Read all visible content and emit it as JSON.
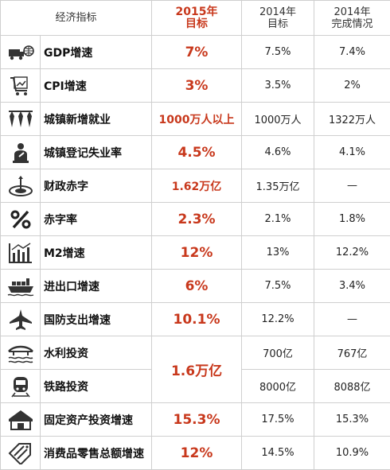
{
  "header": {
    "indicator": "经济指标",
    "target_2015": "2015年\n目标",
    "target_2014": "2014年\n目标",
    "actual_2014": "2014年\n完成情况"
  },
  "rows": [
    {
      "icon": "truck-globe-icon",
      "name": "GDP增速",
      "t2015": "7%",
      "t2014": "7.5%",
      "a2014": "7.4%"
    },
    {
      "icon": "shopping-cart-icon",
      "name": "CPI增速",
      "t2015": "3%",
      "t2014": "3.5%",
      "a2014": "2%"
    },
    {
      "icon": "workers-ties-icon",
      "name": "城镇新增就业",
      "t2015": "1000万人以上",
      "t2014": "1000万人",
      "a2014": "1322万人"
    },
    {
      "icon": "worried-person-icon",
      "name": "城镇登记失业率",
      "t2015": "4.5%",
      "t2014": "4.6%",
      "a2014": "4.1%"
    },
    {
      "icon": "target-arrow-icon",
      "name": "财政赤字",
      "t2015": "1.62万亿",
      "t2014": "1.35万亿",
      "a2014": "—"
    },
    {
      "icon": "percent-icon",
      "name": "赤字率",
      "t2015": "2.3%",
      "t2014": "2.1%",
      "a2014": "1.8%"
    },
    {
      "icon": "bar-chart-icon",
      "name": "M2增速",
      "t2015": "12%",
      "t2014": "13%",
      "a2014": "12.2%"
    },
    {
      "icon": "cargo-ship-icon",
      "name": "进出口增速",
      "t2015": "6%",
      "t2014": "7.5%",
      "a2014": "3.4%"
    },
    {
      "icon": "fighter-jet-icon",
      "name": "国防支出增速",
      "t2015": "10.1%",
      "t2014": "12.2%",
      "a2014": "—"
    },
    {
      "icon": "bridge-water-icon",
      "name": "水利投资",
      "t2015": "1.6万亿",
      "t2014": "700亿",
      "a2014": "767亿"
    },
    {
      "icon": "train-icon",
      "name": "铁路投资",
      "t2014": "8000亿",
      "a2014": "8088亿"
    },
    {
      "icon": "house-icon",
      "name": "固定资产投资增速",
      "t2015": "15.3%",
      "t2014": "17.5%",
      "a2014": "15.3%"
    },
    {
      "icon": "price-tag-icon",
      "name": "消费品零售总额增速",
      "t2015": "12%",
      "t2014": "14.5%",
      "a2014": "10.9%"
    }
  ],
  "colors": {
    "accent": "#c8381c",
    "grid": "#cfcfcf"
  }
}
